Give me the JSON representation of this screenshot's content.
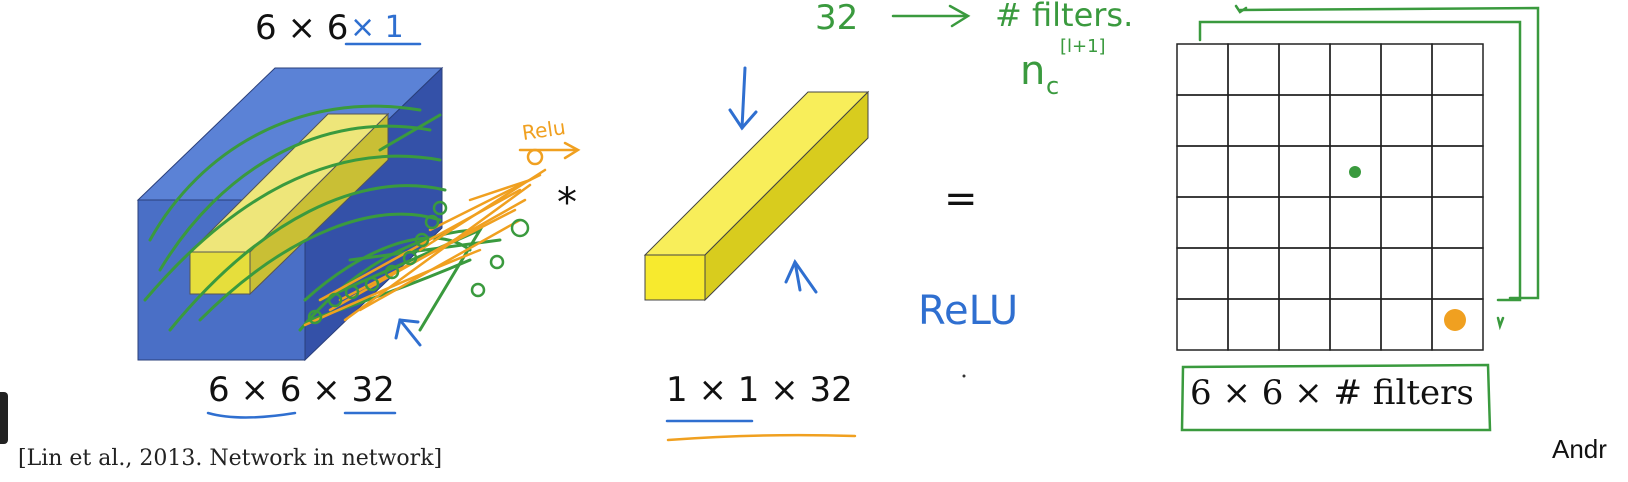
{
  "labels": {
    "top_volume": "6 × 6",
    "top_annot": "× 1",
    "input_dims": "6 × 6 × 32",
    "filter_dims": "1 × 1 × 32",
    "output_dims": "6 × 6 × # filters",
    "convolve_op": "*",
    "equals_op": "="
  },
  "annotations": {
    "filters_count": "32",
    "filters_text": "# filters.",
    "nc_symbol": "n",
    "nc_sub": "c",
    "nc_sup": "[l+1]",
    "relu_small": "Relu",
    "relu_big": "ReLU"
  },
  "citation": "[Lin et al., 2013. Network in network]",
  "author_partial": "Andr",
  "output_grid": {
    "rows": 6,
    "cols": 6
  },
  "colors": {
    "blue_volume": "#4a6fc6",
    "yellow_fiber": "#f7ea2e",
    "green_ink": "#3a9a3e",
    "orange_ink": "#f0a020",
    "blue_ink": "#2f6fd0"
  }
}
